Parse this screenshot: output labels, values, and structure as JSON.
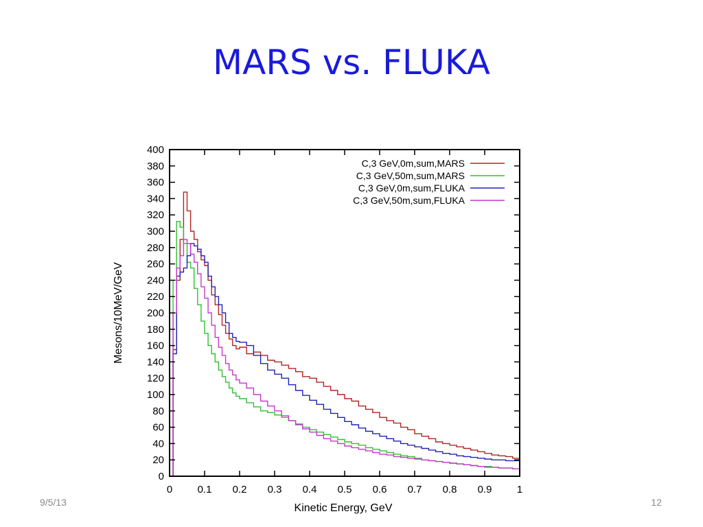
{
  "slide": {
    "title": "MARS vs. FLUKA",
    "date": "9/5/13",
    "page_number": "12"
  },
  "chart_data": {
    "type": "line",
    "xlabel": "Kinetic Energy, GeV",
    "ylabel": "Mesons/10MeV/GeV",
    "xlim": [
      0,
      1
    ],
    "ylim": [
      0,
      400
    ],
    "x_ticks": [
      "0",
      "0.1",
      "0.2",
      "0.3",
      "0.4",
      "0.5",
      "0.6",
      "0.7",
      "0.8",
      "0.9",
      "1"
    ],
    "y_ticks": [
      "0",
      "20",
      "40",
      "60",
      "80",
      "100",
      "120",
      "140",
      "160",
      "180",
      "200",
      "220",
      "240",
      "260",
      "280",
      "300",
      "320",
      "340",
      "360",
      "380",
      "400"
    ],
    "legend_position": "top-right",
    "grid": false,
    "bin_width": 0.01,
    "series": [
      {
        "name": "C,3 GeV,0m,sum,MARS",
        "color": "#b22222",
        "bin_edges_x": [
          0,
          0.01,
          0.02,
          0.03,
          0.04,
          0.05,
          0.06,
          0.07,
          0.08,
          0.09,
          0.1,
          0.11,
          0.12,
          0.13,
          0.14,
          0.15,
          0.16,
          0.17,
          0.18,
          0.19,
          0.2,
          0.22,
          0.24,
          0.26,
          0.28,
          0.3,
          0.32,
          0.34,
          0.36,
          0.38,
          0.4,
          0.42,
          0.44,
          0.46,
          0.48,
          0.5,
          0.52,
          0.54,
          0.56,
          0.58,
          0.6,
          0.62,
          0.64,
          0.66,
          0.68,
          0.7,
          0.72,
          0.74,
          0.76,
          0.78,
          0.8,
          0.82,
          0.84,
          0.86,
          0.88,
          0.9,
          0.92,
          0.94,
          0.96,
          0.98,
          1.0
        ],
        "values": [
          0,
          155,
          240,
          290,
          348,
          325,
          300,
          290,
          275,
          265,
          258,
          240,
          222,
          210,
          198,
          185,
          175,
          168,
          160,
          156,
          158,
          150,
          152,
          148,
          142,
          140,
          136,
          132,
          128,
          122,
          120,
          115,
          110,
          105,
          100,
          95,
          92,
          86,
          82,
          78,
          72,
          68,
          65,
          60,
          57,
          52,
          49,
          46,
          42,
          40,
          38,
          36,
          34,
          32,
          30,
          28,
          26,
          25,
          24,
          22
        ]
      },
      {
        "name": "C,3 GeV,50m,sum,MARS",
        "color": "#2fbf2f",
        "bin_edges_x": [
          0,
          0.01,
          0.02,
          0.03,
          0.04,
          0.05,
          0.06,
          0.07,
          0.08,
          0.09,
          0.1,
          0.11,
          0.12,
          0.13,
          0.14,
          0.15,
          0.16,
          0.17,
          0.18,
          0.19,
          0.2,
          0.22,
          0.24,
          0.26,
          0.28,
          0.3,
          0.32,
          0.34,
          0.36,
          0.38,
          0.4,
          0.42,
          0.44,
          0.46,
          0.48,
          0.5,
          0.52,
          0.54,
          0.56,
          0.58,
          0.6,
          0.62,
          0.64,
          0.66,
          0.68,
          0.7,
          0.72,
          0.74,
          0.76,
          0.78,
          0.8,
          0.82,
          0.84,
          0.86,
          0.88,
          0.9,
          0.92,
          0.94,
          0.96,
          0.98,
          1.0
        ],
        "values": [
          0,
          240,
          312,
          305,
          285,
          262,
          255,
          230,
          210,
          190,
          175,
          160,
          150,
          140,
          130,
          122,
          115,
          108,
          102,
          98,
          95,
          90,
          85,
          80,
          78,
          75,
          72,
          68,
          64,
          60,
          57,
          54,
          51,
          48,
          45,
          42,
          40,
          38,
          35,
          33,
          31,
          29,
          27,
          25,
          24,
          22,
          20,
          19,
          18,
          17,
          16,
          15,
          14,
          13,
          12,
          12,
          11,
          10,
          10,
          9
        ]
      },
      {
        "name": "C,3 GeV,0m,sum,FLUKA",
        "color": "#2020b8",
        "bin_edges_x": [
          0,
          0.01,
          0.02,
          0.03,
          0.04,
          0.05,
          0.06,
          0.07,
          0.08,
          0.09,
          0.1,
          0.11,
          0.12,
          0.13,
          0.14,
          0.15,
          0.16,
          0.17,
          0.18,
          0.19,
          0.2,
          0.22,
          0.24,
          0.26,
          0.28,
          0.3,
          0.32,
          0.34,
          0.36,
          0.38,
          0.4,
          0.42,
          0.44,
          0.46,
          0.48,
          0.5,
          0.52,
          0.54,
          0.56,
          0.58,
          0.6,
          0.62,
          0.64,
          0.66,
          0.68,
          0.7,
          0.72,
          0.74,
          0.76,
          0.78,
          0.8,
          0.82,
          0.84,
          0.86,
          0.88,
          0.9,
          0.92,
          0.94,
          0.96,
          0.98,
          1.0
        ],
        "values": [
          0,
          150,
          245,
          250,
          255,
          270,
          285,
          282,
          278,
          270,
          262,
          245,
          232,
          220,
          210,
          200,
          188,
          175,
          170,
          165,
          164,
          160,
          148,
          138,
          130,
          125,
          120,
          112,
          105,
          99,
          93,
          88,
          82,
          77,
          72,
          67,
          63,
          59,
          55,
          52,
          49,
          46,
          43,
          40,
          38,
          36,
          34,
          32,
          30,
          28,
          27,
          25,
          24,
          23,
          22,
          21,
          20,
          20,
          19,
          19
        ]
      },
      {
        "name": "C,3 GeV,50m,sum,FLUKA",
        "color": "#c438c8",
        "bin_edges_x": [
          0,
          0.01,
          0.02,
          0.03,
          0.04,
          0.05,
          0.06,
          0.07,
          0.08,
          0.09,
          0.1,
          0.11,
          0.12,
          0.13,
          0.14,
          0.15,
          0.16,
          0.17,
          0.18,
          0.19,
          0.2,
          0.22,
          0.24,
          0.26,
          0.28,
          0.3,
          0.32,
          0.34,
          0.36,
          0.38,
          0.4,
          0.42,
          0.44,
          0.46,
          0.48,
          0.5,
          0.52,
          0.54,
          0.56,
          0.58,
          0.6,
          0.62,
          0.64,
          0.66,
          0.68,
          0.7,
          0.72,
          0.74,
          0.76,
          0.78,
          0.8,
          0.82,
          0.84,
          0.86,
          0.88,
          0.9,
          0.92,
          0.94,
          0.96,
          0.98,
          1.0
        ],
        "values": [
          0,
          200,
          255,
          270,
          290,
          285,
          272,
          262,
          248,
          232,
          218,
          200,
          185,
          170,
          158,
          148,
          138,
          130,
          124,
          118,
          114,
          108,
          100,
          92,
          86,
          80,
          74,
          68,
          63,
          58,
          54,
          50,
          46,
          43,
          40,
          37,
          35,
          33,
          31,
          29,
          27,
          26,
          24,
          23,
          22,
          21,
          20,
          19,
          18,
          17,
          16,
          15,
          14,
          13,
          12,
          11,
          11,
          10,
          10,
          9
        ]
      }
    ]
  }
}
